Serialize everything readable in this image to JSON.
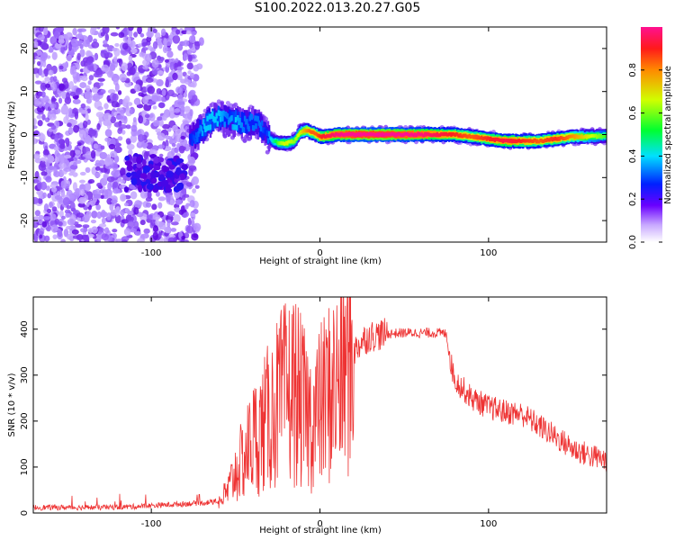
{
  "title": "S100.2022.013.20.27.G05",
  "colors": {
    "snr_line": "#ee3333",
    "axis": "#000000",
    "colormap": [
      "#ffffff",
      "#a070ff",
      "#5a00e0",
      "#0020ff",
      "#00e0ff",
      "#00ff40",
      "#d0ff00",
      "#ff9000",
      "#ff2020",
      "#ff1090"
    ]
  },
  "chart_data": [
    {
      "type": "heatmap",
      "title": "S100.2022.013.20.27.G05",
      "xlabel": "Height of straight line (km)",
      "ylabel": "Frequency (Hz)",
      "xlim": [
        -170,
        170
      ],
      "ylim": [
        -25,
        25
      ],
      "x_ticks": [
        -100,
        0,
        100
      ],
      "x_tick_labels": [
        "-100",
        "0",
        "100"
      ],
      "y_ticks": [
        -20,
        -10,
        0,
        10,
        20
      ],
      "y_tick_labels": [
        "-20",
        "-10",
        "0",
        "10",
        "20"
      ],
      "colorbar": {
        "label": "Normalized spectral amplitude",
        "range": [
          0,
          1
        ],
        "ticks": [
          0,
          0.2,
          0.4,
          0.6,
          0.8
        ],
        "tick_labels": [
          "0.0",
          "0.2",
          "0.4",
          "0.6",
          "0.8"
        ]
      },
      "ridge": {
        "x": [
          -77,
          -72,
          -68,
          -64,
          -60,
          -55,
          -50,
          -45,
          -40,
          -35,
          -32,
          -28,
          -24,
          -20,
          -15,
          -12,
          -8,
          -5,
          -2,
          0,
          5,
          10,
          20,
          40,
          60,
          70,
          80,
          90,
          100,
          110,
          120,
          130,
          140,
          150,
          160,
          170
        ],
        "frequency": [
          -1,
          0.5,
          2,
          3.5,
          4,
          3.5,
          3,
          2.5,
          3,
          2,
          0,
          -1.5,
          -2,
          -2,
          -1.5,
          0.5,
          1,
          0.5,
          0,
          -0.5,
          -0.3,
          0,
          0,
          0,
          0,
          0,
          0,
          -0.5,
          -1,
          -1.5,
          -1.5,
          -1.5,
          -1,
          -0.5,
          -0.5,
          -0.3
        ],
        "amplitude": [
          0.25,
          0.3,
          0.35,
          0.35,
          0.35,
          0.3,
          0.35,
          0.3,
          0.3,
          0.3,
          0.25,
          0.4,
          0.55,
          0.6,
          0.55,
          0.6,
          0.7,
          0.75,
          0.75,
          0.8,
          0.85,
          0.9,
          0.95,
          0.95,
          0.9,
          0.85,
          0.8,
          0.75,
          0.8,
          0.85,
          0.8,
          0.75,
          0.8,
          0.7,
          0.6,
          0.5
        ]
      },
      "noise_region_x": [
        -170,
        -70
      ],
      "low_cluster": {
        "x": [
          -115,
          -80
        ],
        "frequency": [
          -13,
          -5
        ]
      }
    },
    {
      "type": "line",
      "title": "",
      "xlabel": "Height of straight line (km)",
      "ylabel": "SNR (10 * v/v)",
      "xlim": [
        -170,
        170
      ],
      "ylim": [
        0,
        470
      ],
      "x_ticks": [
        -100,
        0,
        100
      ],
      "x_tick_labels": [
        "-100",
        "0",
        "100"
      ],
      "y_ticks": [
        0,
        100,
        200,
        300,
        400
      ],
      "y_tick_labels": [
        "0",
        "100",
        "200",
        "300",
        "400"
      ],
      "series": [
        {
          "x": [
            -170,
            -150,
            -130,
            -110,
            -90,
            -70,
            -60,
            -55,
            -50,
            -45,
            -40,
            -35,
            -30,
            -25,
            -20,
            -15,
            -10,
            -5,
            0,
            5,
            10,
            15,
            20,
            25,
            30,
            40,
            50,
            60,
            70,
            75,
            78,
            80,
            85,
            90,
            95,
            100,
            110,
            120,
            130,
            140,
            150,
            160,
            170
          ],
          "y": [
            12,
            12,
            12,
            14,
            18,
            22,
            25,
            45,
            90,
            120,
            160,
            180,
            210,
            240,
            260,
            270,
            230,
            200,
            230,
            260,
            280,
            320,
            350,
            375,
            385,
            390,
            392,
            392,
            392,
            390,
            320,
            290,
            270,
            250,
            240,
            230,
            220,
            215,
            190,
            165,
            140,
            125,
            115
          ]
        }
      ]
    }
  ]
}
